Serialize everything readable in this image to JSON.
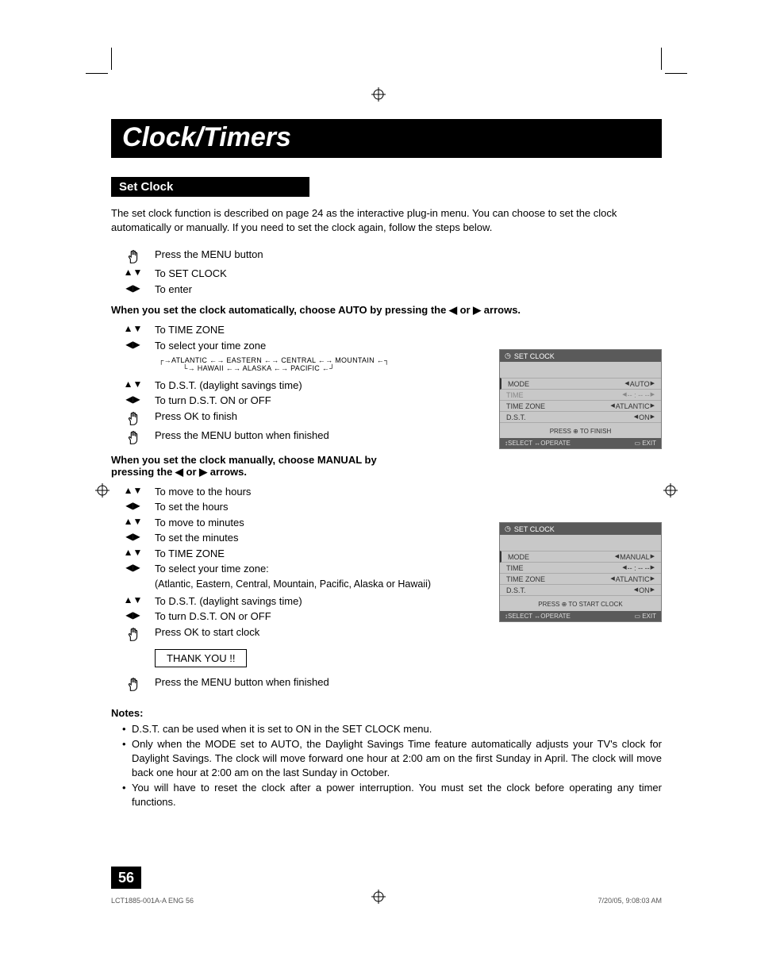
{
  "title": "Clock/Timers",
  "section": "Set Clock",
  "intro": "The set clock function is described on page 24 as the interactive plug-in menu. You can choose to set the clock automatically or manually. If you need to set the clock again, follow the steps below.",
  "steps_auto_pre": [
    {
      "icon": "hand",
      "text": "Press the MENU button"
    },
    {
      "icon": "ud",
      "text": "To SET CLOCK"
    },
    {
      "icon": "lr",
      "text": "To enter"
    }
  ],
  "auto_heading": "When you set the clock automatically, choose AUTO by pressing the ◀ or ▶ arrows.",
  "steps_auto": [
    {
      "icon": "ud",
      "text": "To TIME ZONE"
    },
    {
      "icon": "lr",
      "text": "To select your time zone"
    }
  ],
  "tz_row1": [
    "ATLANTIC",
    "EASTERN",
    "CENTRAL",
    "MOUNTAIN"
  ],
  "tz_row2": [
    "HAWAII",
    "ALASKA",
    "PACIFIC"
  ],
  "steps_auto2": [
    {
      "icon": "ud",
      "text": "To D.S.T. (daylight savings time)"
    },
    {
      "icon": "lr",
      "text": "To turn D.S.T. ON or OFF"
    },
    {
      "icon": "hand",
      "text": "Press OK to finish"
    },
    {
      "icon": "hand",
      "text": "Press the MENU button when finished"
    }
  ],
  "manual_heading": "When you set the clock manually, choose MANUAL by pressing the ◀ or ▶ arrows.",
  "steps_manual": [
    {
      "icon": "ud",
      "text": "To move to the hours"
    },
    {
      "icon": "lr",
      "text": "To set the hours"
    },
    {
      "icon": "ud",
      "text": "To move to minutes"
    },
    {
      "icon": "lr",
      "text": "To set the minutes"
    },
    {
      "icon": "ud",
      "text": "To TIME ZONE"
    },
    {
      "icon": "lr",
      "text": "To select your time zone:"
    }
  ],
  "tz_note": "(Atlantic, Eastern, Central, Mountain, Pacific, Alaska or Hawaii)",
  "steps_manual2": [
    {
      "icon": "ud",
      "text": "To D.S.T. (daylight savings time)"
    },
    {
      "icon": "lr",
      "text": "To turn D.S.T. ON or OFF"
    },
    {
      "icon": "hand",
      "text": "Press OK to start clock"
    }
  ],
  "thanks": "THANK YOU !!",
  "steps_manual3": [
    {
      "icon": "hand",
      "text": "Press the MENU button when finished"
    }
  ],
  "notes_label": "Notes:",
  "notes": [
    "D.S.T. can be used when it is set to ON in the SET CLOCK menu.",
    "Only when the MODE set to AUTO, the Daylight Savings Time feature automatically adjusts your TV's clock for Daylight Savings. The clock will move forward one hour at 2:00 am on the first Sunday in April. The clock will move back one hour at 2:00 am on the last Sunday in October.",
    "You will have to reset the clock after a power interruption. You must set the clock before operating any timer functions."
  ],
  "page_number": "56",
  "footer_left": "LCT1885-001A-A ENG   56",
  "footer_right": "7/20/05, 9:08:03 AM",
  "osd": {
    "title": "SET CLOCK",
    "rows_auto": [
      {
        "k": "MODE",
        "v": "AUTO",
        "dim": false
      },
      {
        "k": "TIME",
        "v": "-- : -- --",
        "dim": true
      },
      {
        "k": "TIME ZONE",
        "v": "ATLANTIC",
        "dim": false
      },
      {
        "k": "D.S.T.",
        "v": "ON",
        "dim": false
      }
    ],
    "finish_auto": "PRESS ⊕ TO FINISH",
    "rows_manual": [
      {
        "k": "MODE",
        "v": "MANUAL",
        "dim": false
      },
      {
        "k": "TIME",
        "v": "-- : -- --",
        "dim": false
      },
      {
        "k": "TIME ZONE",
        "v": "ATLANTIC",
        "dim": false
      },
      {
        "k": "D.S.T.",
        "v": "ON",
        "dim": false
      }
    ],
    "finish_manual": "PRESS ⊕ TO START CLOCK",
    "footer_select": "SELECT",
    "footer_operate": "OPERATE",
    "footer_exit": "EXIT"
  },
  "colors": {
    "black": "#000000",
    "osd_bg": "#c8c8c8",
    "osd_header": "#5a5a5a",
    "osd_border": "#7a7a7a"
  }
}
